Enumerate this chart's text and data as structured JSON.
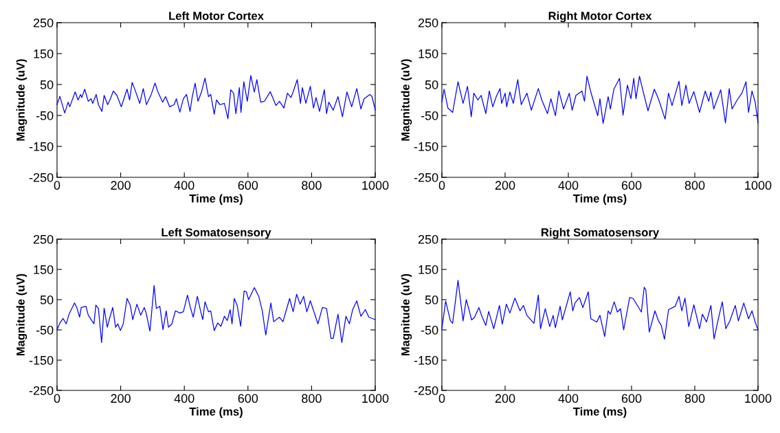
{
  "chart_data": [
    {
      "type": "line",
      "title": "Left Motor Cortex",
      "xlabel": "Time (ms)",
      "ylabel": "Magnitude (uV)",
      "xlim": [
        0,
        1000
      ],
      "ylim": [
        -250,
        250
      ],
      "xticks": [
        0,
        200,
        400,
        600,
        800,
        1000
      ],
      "yticks": [
        -250,
        -150,
        -50,
        50,
        150,
        250
      ],
      "grid": false,
      "series": [
        {
          "color": "#0000ff",
          "x": [
            0,
            9,
            24,
            35,
            40,
            57,
            66,
            74,
            78,
            87,
            98,
            107,
            112,
            123,
            130,
            141,
            148,
            159,
            166,
            177,
            188,
            202,
            220,
            228,
            236,
            245,
            260,
            271,
            281,
            296,
            308,
            317,
            332,
            341,
            354,
            368,
            375,
            386,
            397,
            407,
            418,
            425,
            434,
            443,
            454,
            465,
            476,
            483,
            494,
            501,
            512,
            526,
            537,
            546,
            555,
            562,
            573,
            578,
            587,
            598,
            609,
            620,
            628,
            640,
            652,
            670,
            688,
            699,
            713,
            724,
            735,
            742,
            755,
            765,
            771,
            782,
            796,
            806,
            814,
            825,
            840,
            847,
            854,
            868,
            883,
            897,
            911,
            926,
            942,
            955,
            965,
            983,
            990,
            1000
          ],
          "values": [
            -15,
            12,
            -42,
            -7,
            -22,
            26,
            0,
            18,
            8,
            35,
            -4,
            4,
            -11,
            18,
            -15,
            -37,
            15,
            -15,
            0,
            29,
            15,
            -22,
            35,
            0,
            57,
            33,
            -11,
            37,
            -15,
            18,
            55,
            26,
            -7,
            11,
            -22,
            -15,
            4,
            -39,
            4,
            18,
            -37,
            11,
            54,
            -4,
            26,
            71,
            11,
            18,
            -46,
            0,
            -15,
            -11,
            -61,
            33,
            22,
            -44,
            40,
            -40,
            59,
            -4,
            79,
            26,
            66,
            -7,
            -4,
            27,
            -18,
            -4,
            -26,
            22,
            8,
            26,
            66,
            -11,
            40,
            -11,
            44,
            -26,
            8,
            -37,
            33,
            -44,
            -7,
            -33,
            11,
            -54,
            26,
            -22,
            37,
            -29,
            4,
            18,
            11,
            -32
          ]
        }
      ]
    },
    {
      "type": "line",
      "title": "Right Motor Cortex",
      "xlabel": "Time (ms)",
      "ylabel": "Magnitude (uV)",
      "xlim": [
        0,
        1000
      ],
      "ylim": [
        -250,
        250
      ],
      "xticks": [
        0,
        200,
        400,
        600,
        800,
        1000
      ],
      "yticks": [
        -250,
        -150,
        -50,
        50,
        150,
        250
      ],
      "grid": false,
      "series": [
        {
          "color": "#0000ff",
          "x": [
            0,
            7,
            19,
            34,
            51,
            67,
            81,
            93,
            101,
            114,
            124,
            139,
            150,
            161,
            172,
            184,
            189,
            200,
            205,
            215,
            226,
            240,
            251,
            269,
            283,
            305,
            316,
            334,
            345,
            359,
            370,
            385,
            403,
            412,
            424,
            443,
            451,
            459,
            471,
            493,
            500,
            510,
            526,
            533,
            544,
            562,
            573,
            587,
            598,
            607,
            614,
            625,
            638,
            652,
            672,
            685,
            706,
            717,
            728,
            750,
            759,
            772,
            782,
            797,
            815,
            833,
            844,
            851,
            860,
            882,
            897,
            909,
            918,
            934,
            949,
            962,
            970,
            981,
            991,
            1000
          ],
          "values": [
            -7,
            35,
            -26,
            -40,
            59,
            -11,
            44,
            -54,
            22,
            0,
            15,
            -44,
            29,
            -22,
            11,
            37,
            -11,
            22,
            -22,
            26,
            -11,
            66,
            -15,
            22,
            -33,
            37,
            0,
            -44,
            4,
            -51,
            29,
            -29,
            22,
            -33,
            15,
            29,
            -4,
            77,
            26,
            -51,
            4,
            -76,
            11,
            -29,
            35,
            70,
            -49,
            48,
            4,
            70,
            4,
            77,
            22,
            -35,
            35,
            4,
            -62,
            22,
            -18,
            61,
            -18,
            48,
            -11,
            27,
            -40,
            29,
            -4,
            26,
            -29,
            33,
            -74,
            37,
            -29,
            0,
            22,
            59,
            -40,
            29,
            -7,
            -74
          ]
        }
      ]
    },
    {
      "type": "line",
      "title": "Left Somatosensory",
      "xlabel": "Time (ms)",
      "ylabel": "Magnitude (uV)",
      "xlim": [
        0,
        1000
      ],
      "ylim": [
        -250,
        250
      ],
      "xticks": [
        0,
        200,
        400,
        600,
        800,
        1000
      ],
      "yticks": [
        -250,
        -150,
        -50,
        50,
        150,
        250
      ],
      "grid": false,
      "series": [
        {
          "color": "#0000ff",
          "x": [
            0,
            9,
            19,
            29,
            38,
            55,
            62,
            71,
            76,
            91,
            98,
            109,
            116,
            122,
            130,
            140,
            148,
            158,
            164,
            175,
            184,
            191,
            199,
            208,
            220,
            230,
            238,
            251,
            263,
            274,
            280,
            292,
            305,
            312,
            323,
            333,
            343,
            350,
            361,
            372,
            386,
            397,
            410,
            418,
            428,
            441,
            451,
            458,
            465,
            476,
            483,
            494,
            505,
            515,
            526,
            535,
            544,
            550,
            557,
            566,
            577,
            588,
            595,
            602,
            620,
            634,
            645,
            656,
            672,
            681,
            699,
            710,
            731,
            742,
            753,
            764,
            775,
            785,
            796,
            820,
            834,
            847,
            861,
            868,
            883,
            895,
            908,
            919,
            929,
            942,
            955,
            969,
            980,
            1000
          ],
          "values": [
            -49,
            -27,
            -12,
            -30,
            3,
            39,
            24,
            -8,
            24,
            28,
            -1,
            -19,
            -30,
            32,
            21,
            -92,
            22,
            -41,
            -16,
            24,
            -41,
            -30,
            -52,
            -30,
            54,
            32,
            -16,
            35,
            -1,
            24,
            6,
            -54,
            97,
            21,
            28,
            -49,
            13,
            -41,
            -30,
            13,
            6,
            10,
            65,
            28,
            -8,
            61,
            13,
            -16,
            43,
            10,
            13,
            -52,
            -27,
            -38,
            -5,
            -19,
            17,
            -30,
            54,
            32,
            -38,
            79,
            76,
            50,
            90,
            61,
            13,
            -67,
            39,
            -23,
            -8,
            -23,
            54,
            10,
            68,
            35,
            61,
            10,
            46,
            -30,
            24,
            21,
            -78,
            -78,
            2,
            -92,
            -5,
            -30,
            17,
            46,
            -5,
            17,
            -8,
            -16
          ]
        }
      ]
    },
    {
      "type": "line",
      "title": "Right Somatosensory",
      "xlabel": "Time (ms)",
      "ylabel": "Magnitude (uV)",
      "xlim": [
        0,
        1000
      ],
      "ylim": [
        -250,
        250
      ],
      "xticks": [
        0,
        200,
        400,
        600,
        800,
        1000
      ],
      "yticks": [
        -250,
        -150,
        -50,
        50,
        150,
        250
      ],
      "grid": false,
      "series": [
        {
          "color": "#0000ff",
          "x": [
            0,
            12,
            27,
            34,
            51,
            67,
            77,
            85,
            94,
            103,
            117,
            128,
            139,
            148,
            164,
            182,
            191,
            204,
            215,
            231,
            247,
            258,
            269,
            291,
            305,
            312,
            327,
            341,
            352,
            359,
            374,
            381,
            406,
            414,
            421,
            435,
            446,
            463,
            471,
            490,
            500,
            515,
            526,
            533,
            545,
            555,
            565,
            575,
            594,
            605,
            631,
            640,
            645,
            656,
            674,
            685,
            694,
            704,
            717,
            738,
            750,
            759,
            769,
            781,
            797,
            815,
            824,
            837,
            851,
            861,
            873,
            887,
            898,
            911,
            928,
            938,
            955,
            970,
            981,
            991,
            1000
          ],
          "values": [
            -46,
            45,
            -20,
            -28,
            114,
            -20,
            50,
            20,
            -17,
            -9,
            24,
            -9,
            -35,
            11,
            -46,
            31,
            -31,
            35,
            6,
            55,
            13,
            31,
            -2,
            -28,
            65,
            -46,
            20,
            -39,
            -2,
            -43,
            28,
            -17,
            76,
            13,
            39,
            57,
            24,
            76,
            -13,
            -24,
            -2,
            -72,
            13,
            2,
            43,
            9,
            20,
            -50,
            57,
            54,
            9,
            91,
            83,
            -57,
            13,
            -20,
            -35,
            -81,
            17,
            28,
            61,
            13,
            55,
            -39,
            33,
            -46,
            2,
            -24,
            31,
            -80,
            -20,
            43,
            -46,
            -20,
            31,
            -20,
            39,
            -13,
            13,
            -24,
            -50
          ]
        }
      ]
    }
  ]
}
